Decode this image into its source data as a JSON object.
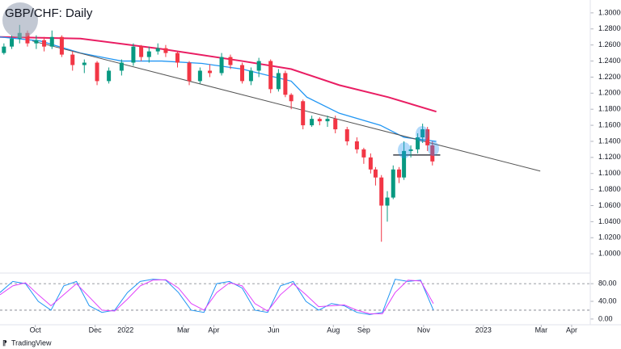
{
  "chart_data": [
    {
      "type": "candlestick",
      "title": "GBP/CHF: Daily",
      "brand": "TradingView",
      "xlim": [
        -36,
        566
      ],
      "ylim": [
        0.976,
        1.316
      ],
      "xticks": [
        {
          "value": 0,
          "label": "Oct"
        },
        {
          "value": 61,
          "label": "Dec"
        },
        {
          "value": 92,
          "label": "2022"
        },
        {
          "value": 151,
          "label": "Mar"
        },
        {
          "value": 182,
          "label": "Apr"
        },
        {
          "value": 243,
          "label": "Jun"
        },
        {
          "value": 304,
          "label": "Aug"
        },
        {
          "value": 335,
          "label": "Sep"
        },
        {
          "value": 396,
          "label": "Nov"
        },
        {
          "value": 457,
          "label": "2023"
        },
        {
          "value": 516,
          "label": "Mar"
        },
        {
          "value": 547,
          "label": "Apr"
        }
      ],
      "yticks": [
        {
          "value": 1.0,
          "label": "1.00000"
        },
        {
          "value": 1.02,
          "label": "1.02000"
        },
        {
          "value": 1.04,
          "label": "1.04000"
        },
        {
          "value": 1.06,
          "label": "1.06000"
        },
        {
          "value": 1.08,
          "label": "1.08000"
        },
        {
          "value": 1.1,
          "label": "1.10000"
        },
        {
          "value": 1.12,
          "label": "1.12000"
        },
        {
          "value": 1.14,
          "label": "1.14000"
        },
        {
          "value": 1.16,
          "label": "1.16000"
        },
        {
          "value": 1.18,
          "label": "1.18000"
        },
        {
          "value": 1.2,
          "label": "1.20000"
        },
        {
          "value": 1.22,
          "label": "1.22000"
        },
        {
          "value": 1.24,
          "label": "1.24000"
        },
        {
          "value": 1.26,
          "label": "1.26000"
        },
        {
          "value": 1.28,
          "label": "1.28000"
        },
        {
          "value": 1.3,
          "label": "1.30000"
        }
      ],
      "up_color": "#089981",
      "down_color": "#f23645",
      "x": [
        -32,
        -24,
        -16,
        -8,
        1,
        9,
        17,
        27,
        38,
        50,
        63,
        75,
        88,
        100,
        108,
        116,
        125,
        133,
        145,
        157,
        168,
        178,
        190,
        199,
        211,
        220,
        228,
        240,
        248,
        255,
        261,
        273,
        282,
        290,
        298,
        306,
        318,
        328,
        335,
        342,
        347,
        353,
        359,
        365,
        371,
        376,
        383,
        390,
        395,
        400,
        405
      ],
      "open": [
        1.25,
        1.258,
        1.268,
        1.275,
        1.262,
        1.266,
        1.258,
        1.27,
        1.248,
        1.235,
        1.238,
        1.215,
        1.228,
        1.238,
        1.258,
        1.245,
        1.252,
        1.256,
        1.25,
        1.238,
        1.215,
        1.228,
        1.225,
        1.245,
        1.235,
        1.215,
        1.228,
        1.24,
        1.205,
        1.225,
        1.198,
        1.19,
        1.16,
        1.168,
        1.165,
        1.168,
        1.155,
        1.14,
        1.13,
        1.12,
        1.105,
        1.095,
        1.06,
        1.07,
        1.105,
        1.095,
        1.128,
        1.13,
        1.145,
        1.155,
        1.135
      ],
      "high": [
        1.262,
        1.272,
        1.285,
        1.278,
        1.272,
        1.27,
        1.278,
        1.272,
        1.252,
        1.242,
        1.24,
        1.232,
        1.242,
        1.262,
        1.26,
        1.258,
        1.262,
        1.26,
        1.252,
        1.24,
        1.232,
        1.236,
        1.25,
        1.248,
        1.238,
        1.232,
        1.244,
        1.242,
        1.23,
        1.228,
        1.2,
        1.192,
        1.172,
        1.17,
        1.172,
        1.172,
        1.158,
        1.145,
        1.132,
        1.125,
        1.108,
        1.098,
        1.078,
        1.11,
        1.108,
        1.14,
        1.135,
        1.15,
        1.162,
        1.158,
        1.14
      ],
      "low": [
        1.248,
        1.255,
        1.262,
        1.258,
        1.255,
        1.252,
        1.255,
        1.245,
        1.228,
        1.225,
        1.21,
        1.212,
        1.222,
        1.234,
        1.24,
        1.238,
        1.248,
        1.245,
        1.232,
        1.21,
        1.212,
        1.22,
        1.222,
        1.23,
        1.212,
        1.21,
        1.22,
        1.2,
        1.202,
        1.195,
        1.18,
        1.155,
        1.158,
        1.16,
        1.158,
        1.15,
        1.135,
        1.125,
        1.112,
        1.1,
        1.085,
        1.015,
        1.04,
        1.068,
        1.088,
        1.092,
        1.12,
        1.125,
        1.138,
        1.128,
        1.11
      ],
      "close": [
        1.258,
        1.268,
        1.275,
        1.262,
        1.266,
        1.258,
        1.27,
        1.248,
        1.235,
        1.238,
        1.215,
        1.228,
        1.238,
        1.258,
        1.245,
        1.252,
        1.256,
        1.25,
        1.238,
        1.215,
        1.228,
        1.225,
        1.245,
        1.235,
        1.215,
        1.228,
        1.24,
        1.205,
        1.225,
        1.198,
        1.19,
        1.16,
        1.168,
        1.165,
        1.168,
        1.155,
        1.14,
        1.13,
        1.12,
        1.105,
        1.095,
        1.06,
        1.07,
        1.105,
        1.095,
        1.128,
        1.13,
        1.145,
        1.155,
        1.135,
        1.115
      ],
      "lines": [
        {
          "color": "#e91e63",
          "width": 2,
          "x": [
            -36,
            46,
            129,
            211,
            261,
            310,
            360,
            409
          ],
          "values": [
            1.27,
            1.268,
            1.255,
            1.24,
            1.23,
            1.21,
            1.195,
            1.177
          ]
        },
        {
          "color": "#2196f3",
          "width": 1.3,
          "x": [
            -36,
            5,
            46,
            88,
            129,
            170,
            211,
            261,
            277,
            310,
            352,
            376,
            409
          ],
          "values": [
            1.27,
            1.265,
            1.25,
            1.24,
            1.24,
            1.237,
            1.23,
            1.215,
            1.195,
            1.175,
            1.16,
            1.145,
            1.14
          ]
        },
        {
          "color": "#555555",
          "width": 1,
          "x": [
            -3,
            515
          ],
          "values": [
            1.265,
            1.103
          ]
        },
        {
          "color": "#131722",
          "width": 1.2,
          "x": [
            365,
            413
          ],
          "values": [
            1.123,
            1.123
          ]
        }
      ]
    },
    {
      "type": "line",
      "xlim": [
        -36,
        566
      ],
      "ylim": [
        -13,
        104
      ],
      "yticks": [
        {
          "value": 0,
          "label": "0.00"
        },
        {
          "value": 40,
          "label": "40.00"
        },
        {
          "value": 80,
          "label": "80.00"
        }
      ],
      "bands": [
        20,
        80
      ],
      "x": [
        -36,
        -23,
        -10,
        3,
        16,
        29,
        42,
        55,
        68,
        81,
        94,
        107,
        120,
        133,
        146,
        159,
        172,
        185,
        198,
        211,
        224,
        237,
        250,
        263,
        276,
        289,
        302,
        315,
        328,
        341,
        354,
        367,
        380,
        393,
        406
      ],
      "series": [
        {
          "color": "#2196f3",
          "values": [
            60,
            85,
            80,
            40,
            20,
            75,
            85,
            30,
            15,
            20,
            60,
            85,
            90,
            88,
            60,
            20,
            15,
            80,
            85,
            70,
            20,
            15,
            75,
            85,
            40,
            20,
            35,
            30,
            15,
            10,
            15,
            90,
            85,
            88,
            20
          ]
        },
        {
          "color": "#e040fb",
          "values": [
            55,
            75,
            82,
            55,
            30,
            55,
            80,
            50,
            20,
            18,
            45,
            75,
            88,
            89,
            70,
            35,
            20,
            60,
            82,
            75,
            35,
            18,
            55,
            80,
            55,
            28,
            30,
            32,
            20,
            12,
            12,
            60,
            88,
            86,
            35
          ]
        }
      ]
    }
  ]
}
